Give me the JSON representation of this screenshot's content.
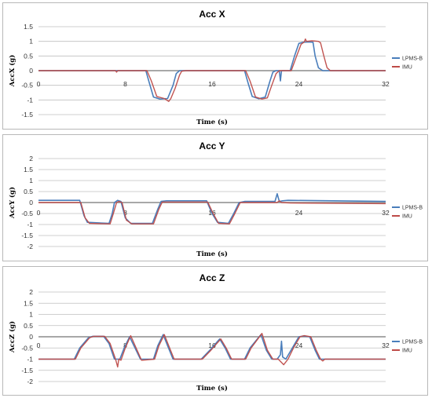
{
  "colors": {
    "lpms": "#4a7ebb",
    "imu": "#be4b48",
    "grid": "#bfbfbf",
    "zero": "#8c8c8c"
  },
  "legend_placement": "right",
  "chart_data": [
    {
      "type": "line",
      "title": "Acc X",
      "xlabel": "Time (s)",
      "ylabel": "AccX (g)",
      "xlim": [
        0,
        32
      ],
      "ylim": [
        -1.5,
        1.5
      ],
      "xticks": [
        0,
        8,
        16,
        24,
        32
      ],
      "yticks": [
        1.5,
        1,
        0.5,
        0,
        -0.5,
        -1,
        -1.5
      ],
      "ytick_labels": [
        "1.5",
        "1",
        "0.5",
        "0",
        "-0.5",
        "-1",
        "-1.5"
      ],
      "grid": true,
      "series": [
        {
          "name": "LPMS-B",
          "x": [
            0,
            9.9,
            10.2,
            10.6,
            11.2,
            11.9,
            12.4,
            12.7,
            13.0,
            13.4,
            19.0,
            19.3,
            19.7,
            20.3,
            20.9,
            21.3,
            21.6,
            21.9,
            22.2,
            22.3,
            22.4,
            22.5,
            23.2,
            23.6,
            24.0,
            24.4,
            24.9,
            25.3,
            25.5,
            25.8,
            26.2,
            32
          ],
          "y": [
            0,
            0,
            -0.4,
            -0.9,
            -0.97,
            -0.95,
            -0.5,
            -0.1,
            0,
            0,
            0,
            -0.4,
            -0.88,
            -0.96,
            -0.9,
            -0.4,
            -0.05,
            0,
            0,
            -0.35,
            0,
            0,
            0,
            0.5,
            0.93,
            0.97,
            0.98,
            0.97,
            0.5,
            0.1,
            0,
            0
          ]
        },
        {
          "name": "IMU",
          "x": [
            0,
            7.1,
            7.2,
            7.3,
            10.0,
            10.4,
            10.9,
            11.6,
            12.0,
            12.2,
            12.6,
            13.0,
            13.2,
            13.6,
            19.1,
            19.5,
            20.0,
            20.6,
            21.1,
            21.5,
            21.9,
            22.2,
            22.6,
            23.3,
            23.8,
            24.2,
            24.5,
            24.6,
            24.7,
            25.2,
            25.8,
            26.0,
            26.3,
            26.6,
            26.9,
            32
          ],
          "y": [
            0,
            0,
            -0.05,
            0,
            0,
            -0.35,
            -0.88,
            -0.95,
            -1.05,
            -0.95,
            -0.6,
            -0.15,
            -0.02,
            0,
            0,
            -0.35,
            -0.9,
            -0.97,
            -0.93,
            -0.5,
            -0.1,
            0,
            0,
            0,
            0.5,
            0.9,
            0.98,
            1.08,
            1.0,
            1.02,
            1.0,
            0.95,
            0.5,
            0.1,
            0,
            0
          ]
        }
      ]
    },
    {
      "type": "line",
      "title": "Acc Y",
      "xlabel": "Time (s)",
      "ylabel": "AccY (g)",
      "xlim": [
        0,
        32
      ],
      "ylim": [
        -2,
        2
      ],
      "xticks": [
        0,
        8,
        16,
        24,
        32
      ],
      "yticks": [
        2,
        1.5,
        1,
        0.5,
        0,
        -0.5,
        -1,
        -1.5,
        -2
      ],
      "ytick_labels": [
        "2",
        "1.5",
        "1",
        "0.5",
        "0",
        "-0.5",
        "-1",
        "-1.5",
        "-2"
      ],
      "grid": true,
      "series": [
        {
          "name": "LPMS-B",
          "x": [
            0,
            3.8,
            4.2,
            4.5,
            6.5,
            6.8,
            7.0,
            7.3,
            7.6,
            8.0,
            8.5,
            10.5,
            11.0,
            11.3,
            11.8,
            15.5,
            16.0,
            16.5,
            17.5,
            18.0,
            18.5,
            19.0,
            21.8,
            22.0,
            22.2,
            22.5,
            23.0,
            32
          ],
          "y": [
            0.1,
            0.1,
            -0.6,
            -0.9,
            -0.95,
            -0.5,
            0,
            0.1,
            0.05,
            -0.7,
            -0.95,
            -0.95,
            -0.3,
            0.05,
            0.08,
            0.08,
            -0.5,
            -0.9,
            -0.95,
            -0.5,
            0,
            0.05,
            0.05,
            0.4,
            0.05,
            0.08,
            0.1,
            0.05
          ]
        },
        {
          "name": "IMU",
          "x": [
            0,
            3.9,
            4.3,
            4.7,
            6.6,
            6.9,
            7.2,
            7.4,
            7.7,
            8.1,
            8.6,
            10.6,
            11.1,
            11.4,
            11.9,
            15.6,
            16.1,
            16.6,
            17.6,
            18.1,
            18.6,
            19.1,
            22.0,
            22.2,
            22.4,
            23.2,
            32
          ],
          "y": [
            0,
            0,
            -0.7,
            -0.95,
            -0.97,
            -0.5,
            0,
            0.05,
            0,
            -0.8,
            -0.97,
            -0.97,
            -0.3,
            0.02,
            0.02,
            0.02,
            -0.5,
            -0.95,
            -0.97,
            -0.5,
            0,
            0,
            0,
            0.08,
            0.0,
            -0.02,
            -0.05
          ]
        }
      ]
    },
    {
      "type": "line",
      "title": "Acc Z",
      "xlabel": "Time (s)",
      "ylabel": "AccZ (g)",
      "xlim": [
        0,
        32
      ],
      "ylim": [
        -2,
        2
      ],
      "xticks": [
        0,
        8,
        16,
        24,
        32
      ],
      "yticks": [
        2,
        1.5,
        1,
        0.5,
        0,
        -0.5,
        -1,
        -1.5,
        -2
      ],
      "ytick_labels": [
        "2",
        "1.5",
        "1",
        "0.5",
        "0",
        "-0.5",
        "-1",
        "-1.5",
        "-2"
      ],
      "grid": true,
      "series": [
        {
          "name": "LPMS-B",
          "x": [
            0,
            3.3,
            3.8,
            4.6,
            5.0,
            6.0,
            6.5,
            7.0,
            7.5,
            7.9,
            8.4,
            8.9,
            9.4,
            10.6,
            11.0,
            11.5,
            11.9,
            12.4,
            15.0,
            15.8,
            16.7,
            17.2,
            17.7,
            19.0,
            19.5,
            20.5,
            21.0,
            21.5,
            22.0,
            22.3,
            22.4,
            22.5,
            22.8,
            23.4,
            24.0,
            24.4,
            25.0,
            25.5,
            25.9,
            32
          ],
          "y": [
            -1,
            -1,
            -0.5,
            -0.05,
            0.02,
            0.02,
            -0.3,
            -1.0,
            -1.0,
            -0.5,
            0,
            -0.5,
            -1.0,
            -1.0,
            -0.4,
            0.1,
            -0.4,
            -1.0,
            -1.0,
            -0.6,
            -0.1,
            -0.5,
            -1.0,
            -1.0,
            -0.5,
            0.1,
            -0.6,
            -1.0,
            -1.0,
            -0.8,
            -0.2,
            -0.9,
            -1.0,
            -0.5,
            0,
            0.03,
            0,
            -0.6,
            -1.0,
            -1.0
          ]
        },
        {
          "name": "IMU",
          "x": [
            0,
            3.4,
            3.9,
            4.7,
            5.1,
            6.1,
            6.6,
            7.1,
            7.3,
            7.4,
            7.6,
            8.0,
            8.5,
            9.0,
            9.5,
            10.7,
            11.1,
            11.6,
            12.0,
            12.5,
            15.1,
            15.9,
            16.8,
            17.3,
            17.8,
            19.1,
            19.6,
            20.6,
            21.1,
            21.6,
            22.1,
            22.6,
            23.0,
            23.5,
            24.1,
            24.5,
            25.1,
            25.6,
            26.0,
            26.2,
            26.4,
            32
          ],
          "y": [
            -1,
            -1,
            -0.5,
            -0.05,
            0.02,
            0.02,
            -0.3,
            -1.0,
            -1.35,
            -1.0,
            -1.05,
            -0.5,
            0.05,
            -0.5,
            -1.05,
            -1.0,
            -0.4,
            0.1,
            -0.4,
            -1.0,
            -1.0,
            -0.6,
            -0.1,
            -0.5,
            -1.0,
            -1.0,
            -0.5,
            0.15,
            -0.6,
            -1.0,
            -1.0,
            -1.25,
            -1.0,
            -0.5,
            0,
            0.05,
            0,
            -0.6,
            -1.0,
            -1.08,
            -1.0,
            -1.0
          ]
        }
      ]
    }
  ]
}
